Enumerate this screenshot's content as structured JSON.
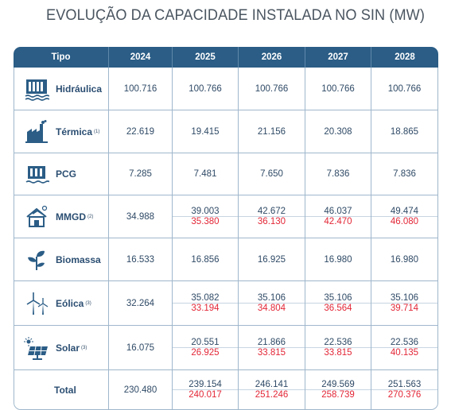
{
  "title": "EVOLUÇÃO DA CAPACIDADE INSTALADA NO SIN (MW)",
  "headers": [
    "Tipo",
    "2024",
    "2025",
    "2026",
    "2027",
    "2028"
  ],
  "rows": [
    {
      "label": "Hidráulica",
      "note": "",
      "icon": "hydro-dam-icon",
      "v2024": "100.716",
      "values": [
        "100.766",
        "100.766",
        "100.766",
        "100.766"
      ]
    },
    {
      "label": "Térmica",
      "note": "(1)",
      "icon": "thermal-plant-icon",
      "v2024": "22.619",
      "values": [
        "19.415",
        "21.156",
        "20.308",
        "18.865"
      ]
    },
    {
      "label": "PCG",
      "note": "",
      "icon": "small-hydro-icon",
      "v2024": "7.285",
      "values": [
        "7.481",
        "7.650",
        "7.836",
        "7.836"
      ]
    },
    {
      "label": "MMGD",
      "note": "(2)",
      "icon": "distributed-gen-house-icon",
      "v2024": "34.988",
      "values": [
        "39.003",
        "42.672",
        "46.037",
        "49.474"
      ],
      "values_alt": [
        "35.380",
        "36.130",
        "42.470",
        "46.080"
      ]
    },
    {
      "label": "Biomassa",
      "note": "",
      "icon": "biomass-sprout-icon",
      "v2024": "16.533",
      "values": [
        "16.856",
        "16.925",
        "16.980",
        "16.980"
      ]
    },
    {
      "label": "Eólica",
      "note": "(3)",
      "icon": "wind-turbine-icon",
      "v2024": "32.264",
      "values": [
        "35.082",
        "35.106",
        "35.106",
        "35.106"
      ],
      "values_alt": [
        "33.194",
        "34.804",
        "36.564",
        "39.714"
      ]
    },
    {
      "label": "Solar",
      "note": "(3)",
      "icon": "solar-panel-icon",
      "v2024": "16.075",
      "values": [
        "20.551",
        "21.866",
        "22.536",
        "22.536"
      ],
      "values_alt": [
        "26.925",
        "33.815",
        "33.815",
        "40.135"
      ]
    }
  ],
  "total": {
    "label": "Total",
    "v2024": "230.480",
    "values": [
      "239.154",
      "246.141",
      "249.569",
      "251.563"
    ],
    "values_alt": [
      "240.017",
      "251.246",
      "258.739",
      "270.376"
    ]
  },
  "colors": {
    "header_bg": "#2b5d86",
    "text": "#2f4a66",
    "alt_value": "#e32636",
    "icon": "#2b5d86"
  }
}
